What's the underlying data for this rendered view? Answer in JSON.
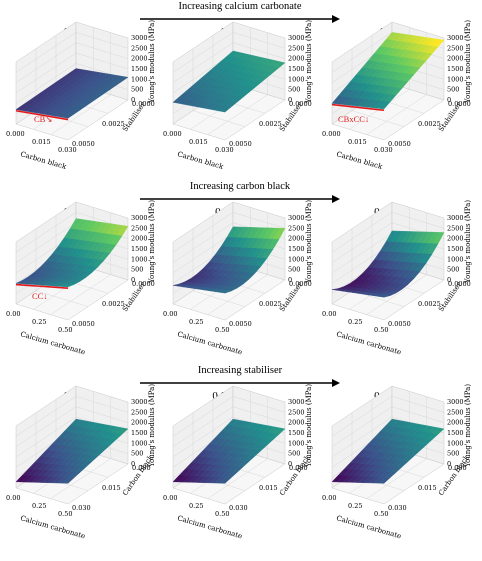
{
  "chart_data": {
    "type": "surface",
    "rows": [
      {
        "heading": "Increasing calcium carbonate",
        "x_label": "Carbon black",
        "y_label": "Stabiliser",
        "z_label": "Young's modulus (MPa)",
        "x_ticks": [
          "0.000",
          "0.015",
          "0.030"
        ],
        "y_ticks": [
          "0.0000",
          "0.0025",
          "0.0050"
        ],
        "z_ticks": [
          "0",
          "500",
          "1000",
          "1500",
          "2000",
          "2500",
          "3000"
        ],
        "zlim": [
          0,
          3000
        ],
        "panels": [
          {
            "title": "0.0",
            "surface_corners": [
              700,
              1050,
              750,
              1100
            ],
            "annotation": "CB↘"
          },
          {
            "title": "0.3",
            "surface_corners": [
              1050,
              1350,
              1600,
              1800
            ],
            "annotation": ""
          },
          {
            "title": "0.6",
            "surface_corners": [
              1000,
              1500,
              2500,
              2900
            ],
            "annotation": "CBxCC↓"
          }
        ]
      },
      {
        "heading": "Increasing carbon black",
        "x_label": "Calcium carbonate",
        "y_label": "Stabiliser",
        "z_label": "Young's modulus (MPa)",
        "x_ticks": [
          "0.00",
          "0.25",
          "0.50"
        ],
        "y_ticks": [
          "0.0000",
          "0.0025",
          "0.0050"
        ],
        "z_ticks": [
          "0",
          "500",
          "1000",
          "1500",
          "2000",
          "2500",
          "3000"
        ],
        "zlim": [
          0,
          3000
        ],
        "panels": [
          {
            "title": "0.0",
            "surface_corners": [
              1000,
              1600,
              2200,
              2600
            ],
            "curvature": 900,
            "annotation": "CC↓"
          },
          {
            "title": "0.018",
            "surface_corners": [
              900,
              1300,
              1800,
              2500
            ],
            "curvature": 1100,
            "annotation": ""
          },
          {
            "title": "0.036",
            "surface_corners": [
              700,
              1100,
              1600,
              2300
            ],
            "curvature": 1200,
            "annotation": ""
          }
        ]
      },
      {
        "heading": "Increasing stabiliser",
        "x_label": "Calcium carbonate",
        "y_label": "Carbon black",
        "z_label": "Young's modulus (MPa)",
        "x_ticks": [
          "0.00",
          "0.25",
          "0.50"
        ],
        "y_ticks": [
          "0.000",
          "0.015",
          "0.030"
        ],
        "z_ticks": [
          "0",
          "500",
          "1000",
          "1500",
          "2000",
          "2500",
          "3000"
        ],
        "zlim": [
          0,
          3000
        ],
        "panels": [
          {
            "title": "0.0",
            "surface_corners": [
              300,
              1000,
              1400,
              1700
            ],
            "annotation": ""
          },
          {
            "title": "0.0025",
            "surface_corners": [
              300,
              1000,
              1400,
              1700
            ],
            "annotation": ""
          },
          {
            "title": "0.005",
            "surface_corners": [
              300,
              1000,
              1400,
              1700
            ],
            "annotation": ""
          }
        ]
      }
    ]
  },
  "colors": {
    "colormap": "viridis",
    "annotation": "#e31a1c",
    "pane": "#f0f0f0",
    "grid": "#d8d8d8"
  }
}
